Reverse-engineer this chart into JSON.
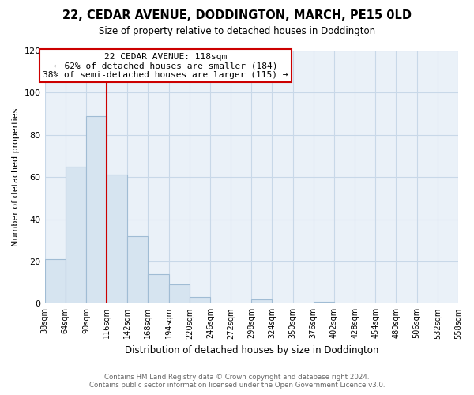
{
  "title": "22, CEDAR AVENUE, DODDINGTON, MARCH, PE15 0LD",
  "subtitle": "Size of property relative to detached houses in Doddington",
  "xlabel": "Distribution of detached houses by size in Doddington",
  "ylabel": "Number of detached properties",
  "bar_edges": [
    38,
    64,
    90,
    116,
    142,
    168,
    194,
    220,
    246,
    272,
    298,
    324,
    350,
    376,
    402,
    428,
    454,
    480,
    506,
    532,
    558
  ],
  "bar_heights": [
    21,
    65,
    89,
    61,
    32,
    14,
    9,
    3,
    0,
    0,
    2,
    0,
    0,
    1,
    0,
    0,
    0,
    0,
    0,
    0
  ],
  "bar_color": "#d6e4f0",
  "bar_edgecolor": "#a0bcd4",
  "vline_x": 116,
  "vline_color": "#cc0000",
  "ylim": [
    0,
    120
  ],
  "yticks": [
    0,
    20,
    40,
    60,
    80,
    100,
    120
  ],
  "xtick_labels": [
    "38sqm",
    "64sqm",
    "90sqm",
    "116sqm",
    "142sqm",
    "168sqm",
    "194sqm",
    "220sqm",
    "246sqm",
    "272sqm",
    "298sqm",
    "324sqm",
    "350sqm",
    "376sqm",
    "402sqm",
    "428sqm",
    "454sqm",
    "480sqm",
    "506sqm",
    "532sqm",
    "558sqm"
  ],
  "annotation_title": "22 CEDAR AVENUE: 118sqm",
  "annotation_line1": "← 62% of detached houses are smaller (184)",
  "annotation_line2": "38% of semi-detached houses are larger (115) →",
  "annotation_box_color": "#ffffff",
  "annotation_box_edgecolor": "#cc0000",
  "footer_line1": "Contains HM Land Registry data © Crown copyright and database right 2024.",
  "footer_line2": "Contains public sector information licensed under the Open Government Licence v3.0.",
  "background_color": "#ffffff",
  "plot_bg_color": "#eaf1f8",
  "grid_color": "#c8d8e8"
}
